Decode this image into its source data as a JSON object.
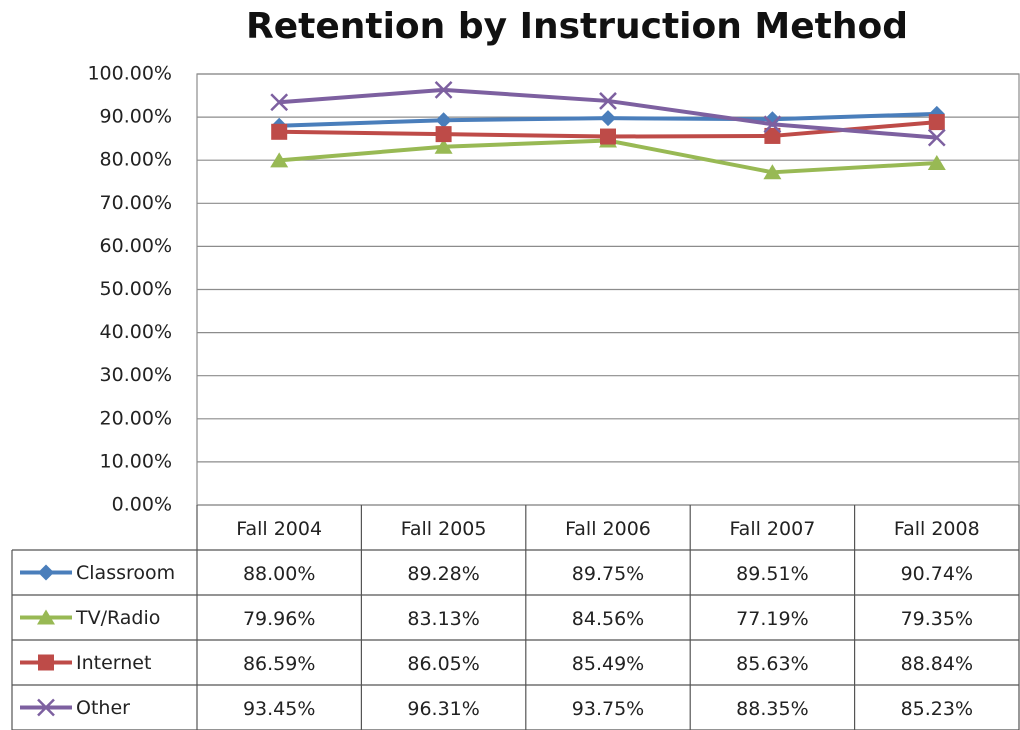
{
  "chart_data": {
    "type": "line",
    "title": "Retention by Instruction Method",
    "categories": [
      "Fall 2004",
      "Fall 2005",
      "Fall 2006",
      "Fall 2007",
      "Fall 2008"
    ],
    "series": [
      {
        "name": "Classroom",
        "color": "#4a7ebb",
        "marker": "diamond",
        "values": [
          88.0,
          89.28,
          89.75,
          89.51,
          90.74
        ],
        "value_labels": [
          "88.00%",
          "89.28%",
          "89.75%",
          "89.51%",
          "90.74%"
        ]
      },
      {
        "name": "TV/Radio",
        "color": "#98b954",
        "marker": "triangle",
        "values": [
          79.96,
          83.13,
          84.56,
          77.19,
          79.35
        ],
        "value_labels": [
          "79.96%",
          "83.13%",
          "84.56%",
          "77.19%",
          "79.35%"
        ]
      },
      {
        "name": "Internet",
        "color": "#be4b48",
        "marker": "square",
        "values": [
          86.59,
          86.05,
          85.49,
          85.63,
          88.84
        ],
        "value_labels": [
          "86.59%",
          "86.05%",
          "85.49%",
          "85.63%",
          "88.84%"
        ]
      },
      {
        "name": "Other",
        "color": "#7d60a0",
        "marker": "x",
        "values": [
          93.45,
          96.31,
          93.75,
          88.35,
          85.23
        ],
        "value_labels": [
          "93.45%",
          "96.31%",
          "93.75%",
          "88.35%",
          "85.23%"
        ]
      }
    ],
    "ylim": [
      0,
      100
    ],
    "yticks": [
      {
        "value": 0,
        "label": "0.00%"
      },
      {
        "value": 10,
        "label": "10.00%"
      },
      {
        "value": 20,
        "label": "20.00%"
      },
      {
        "value": 30,
        "label": "30.00%"
      },
      {
        "value": 40,
        "label": "40.00%"
      },
      {
        "value": 50,
        "label": "50.00%"
      },
      {
        "value": 60,
        "label": "60.00%"
      },
      {
        "value": 70,
        "label": "70.00%"
      },
      {
        "value": 80,
        "label": "80.00%"
      },
      {
        "value": 90,
        "label": "90.00%"
      },
      {
        "value": 100,
        "label": "100.00%"
      }
    ],
    "grid": true
  }
}
